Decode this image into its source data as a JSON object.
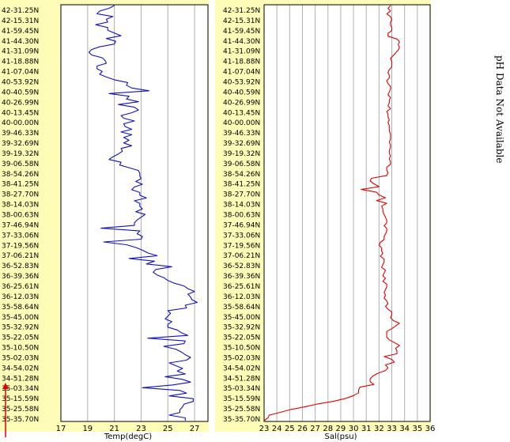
{
  "note": "pH Data Not Available",
  "colors": {
    "temperature": "#1010c8",
    "salinity": "#e00000",
    "panel_background": "#fdfdb8",
    "direction_arrow": "#e00000"
  },
  "direction_arrow_icon": "up-arrow-icon",
  "chart_data": [
    {
      "type": "line",
      "xlabel": "Temp(degC)",
      "ylabel": "",
      "xlim": [
        17,
        28
      ],
      "xticks": [
        "17",
        "19",
        "21",
        "23",
        "25",
        "27"
      ],
      "yticks": [
        "42-31.25N",
        "42-15.31N",
        "41-59.45N",
        "41-44.30N",
        "41-31.09N",
        "41-18.88N",
        "41-07.04N",
        "40-53.92N",
        "40-40.59N",
        "40-26.99N",
        "40-13.45N",
        "40-00.00N",
        "39-46.33N",
        "39-32.69N",
        "39-19.32N",
        "39-06.58N",
        "38-54.26N",
        "38-41.25N",
        "38-27.70N",
        "38-14.03N",
        "38-00.63N",
        "37-46.94N",
        "37-33.06N",
        "37-19.56N",
        "37-06.21N",
        "36-52.83N",
        "36-39.36N",
        "36-25.61N",
        "36-12.03N",
        "35-58.64N",
        "35-45.00N",
        "35-32.92N",
        "35-22.05N",
        "35-10.50N",
        "35-02.03N",
        "34-54.02N",
        "34-51.28N",
        "35-03.34N",
        "35-15.59N",
        "35-25.58N",
        "35-35.70N"
      ],
      "grid": true,
      "series": [
        {
          "values": [
            21.0,
            20.6,
            19.9,
            19.7,
            20.9,
            20.4,
            20.5,
            19.6,
            20.5,
            20.5,
            21.0,
            21.5,
            20.4,
            21.1,
            21.0,
            19.9,
            19.3,
            19.1,
            19.3,
            20.1,
            20.3,
            20.4,
            19.7,
            19.7,
            20.1,
            19.9,
            20.4,
            21.0,
            22.0,
            21.9,
            22.3,
            23.6,
            20.6,
            22.1,
            21.9,
            22.8,
            21.3,
            22.5,
            22.8,
            22.3,
            21.5,
            21.7,
            22.5,
            21.7,
            21.8,
            22.3,
            21.5,
            22.3,
            21.7,
            22.1,
            21.7,
            22.3,
            21.5,
            21.6,
            21.3,
            20.9,
            20.6,
            21.5,
            21.4,
            22.1,
            22.8,
            22.9,
            22.9,
            23.0,
            22.6,
            23.1,
            22.5,
            22.3,
            22.9,
            22.9,
            23.4,
            22.5,
            22.9,
            22.9,
            23.1,
            22.6,
            23.3,
            23.0,
            22.7,
            22.5,
            22.5,
            20.0,
            22.9,
            22.7,
            23.1,
            23.0,
            20.2,
            21.9,
            22.6,
            23.1,
            23.5,
            24.2,
            22.1,
            24.0,
            23.4,
            25.3,
            24.1,
            23.9,
            24.2,
            24.7,
            25.0,
            25.5,
            26.2,
            26.5,
            27.0,
            26.5,
            26.7,
            26.8,
            27.2,
            26.3,
            26.4,
            25.0,
            25.2,
            25.0,
            24.8,
            25.3,
            25.0,
            25.0,
            25.7,
            26.0,
            26.5,
            23.5,
            26.3,
            26.2,
            24.7,
            25.6,
            26.0,
            26.3,
            26.7,
            26.4,
            25.1,
            25.6,
            26.1,
            25.7,
            26.3,
            24.8,
            26.1,
            26.7,
            25.4,
            23.1,
            25.9,
            26.4,
            25.1,
            26.9,
            26.9,
            26.2,
            26.1,
            25.9,
            25.9,
            25.1,
            26.3,
            26.3
          ]
        }
      ]
    },
    {
      "type": "line",
      "xlabel": "Sal(psu)",
      "ylabel": "",
      "xlim": [
        23,
        36
      ],
      "xticks": [
        "23",
        "24",
        "25",
        "26",
        "27",
        "28",
        "29",
        "30",
        "31",
        "32",
        "33",
        "34",
        "35",
        "36"
      ],
      "yticks": [
        "42-31.25N",
        "42-15.31N",
        "41-59.45N",
        "41-44.30N",
        "41-31.09N",
        "41-18.88N",
        "41-07.04N",
        "40-53.92N",
        "40-40.59N",
        "40-26.99N",
        "40-13.45N",
        "40-00.00N",
        "39-46.33N",
        "39-32.69N",
        "39-19.32N",
        "39-06.58N",
        "38-54.26N",
        "38-41.25N",
        "38-27.70N",
        "38-14.03N",
        "38-00.63N",
        "37-46.94N",
        "37-33.06N",
        "37-19.56N",
        "37-06.21N",
        "36-52.83N",
        "36-39.36N",
        "36-25.61N",
        "36-12.03N",
        "35-58.64N",
        "35-45.00N",
        "35-32.92N",
        "35-22.05N",
        "35-10.50N",
        "35-02.03N",
        "34-54.02N",
        "34-51.28N",
        "35-03.34N",
        "35-15.59N",
        "35-25.58N",
        "35-35.70N"
      ],
      "grid": true,
      "series": [
        {
          "values": [
            32.9,
            32.7,
            32.9,
            32.6,
            32.9,
            33.0,
            32.9,
            32.9,
            33.0,
            33.0,
            32.7,
            32.7,
            33.4,
            33.6,
            33.5,
            33.6,
            33.5,
            33.3,
            33.1,
            32.9,
            33.0,
            33.0,
            33.0,
            32.8,
            32.7,
            32.8,
            32.8,
            32.6,
            32.7,
            32.9,
            32.9,
            32.8,
            32.7,
            32.9,
            32.8,
            32.8,
            32.7,
            32.9,
            32.6,
            32.7,
            32.7,
            32.8,
            32.7,
            32.8,
            32.8,
            32.8,
            32.9,
            32.9,
            32.9,
            32.8,
            32.9,
            32.9,
            32.8,
            32.8,
            32.9,
            32.8,
            32.9,
            32.9,
            32.6,
            32.6,
            32.7,
            32.6,
            31.4,
            31.3,
            31.6,
            32.0,
            30.6,
            31.8,
            32.0,
            32.5,
            31.8,
            32.6,
            32.2,
            32.3,
            32.3,
            32.4,
            32.5,
            32.6,
            32.6,
            32.4,
            32.6,
            32.6,
            32.5,
            32.4,
            32.4,
            32.1,
            32.0,
            32.2,
            32.2,
            32.3,
            32.1,
            32.4,
            32.4,
            32.3,
            32.2,
            32.5,
            32.4,
            32.3,
            32.5,
            32.3,
            32.6,
            32.6,
            32.5,
            32.4,
            32.5,
            32.4,
            32.6,
            32.7,
            32.5,
            32.7,
            33.0,
            33.0,
            32.9,
            33.1,
            33.6,
            33.3,
            33.0,
            32.6,
            32.6,
            32.6,
            32.8,
            33.2,
            33.6,
            33.3,
            33.4,
            33.4,
            32.4,
            33.0,
            33.2,
            32.5,
            32.7,
            32.5,
            31.9,
            31.5,
            31.3,
            31.3,
            31.6,
            30.5,
            30.4,
            30.4,
            30.0,
            29.4,
            28.5,
            27.2,
            26.2,
            25.1,
            24.3,
            23.4,
            23.3,
            23.0
          ]
        }
      ]
    }
  ]
}
